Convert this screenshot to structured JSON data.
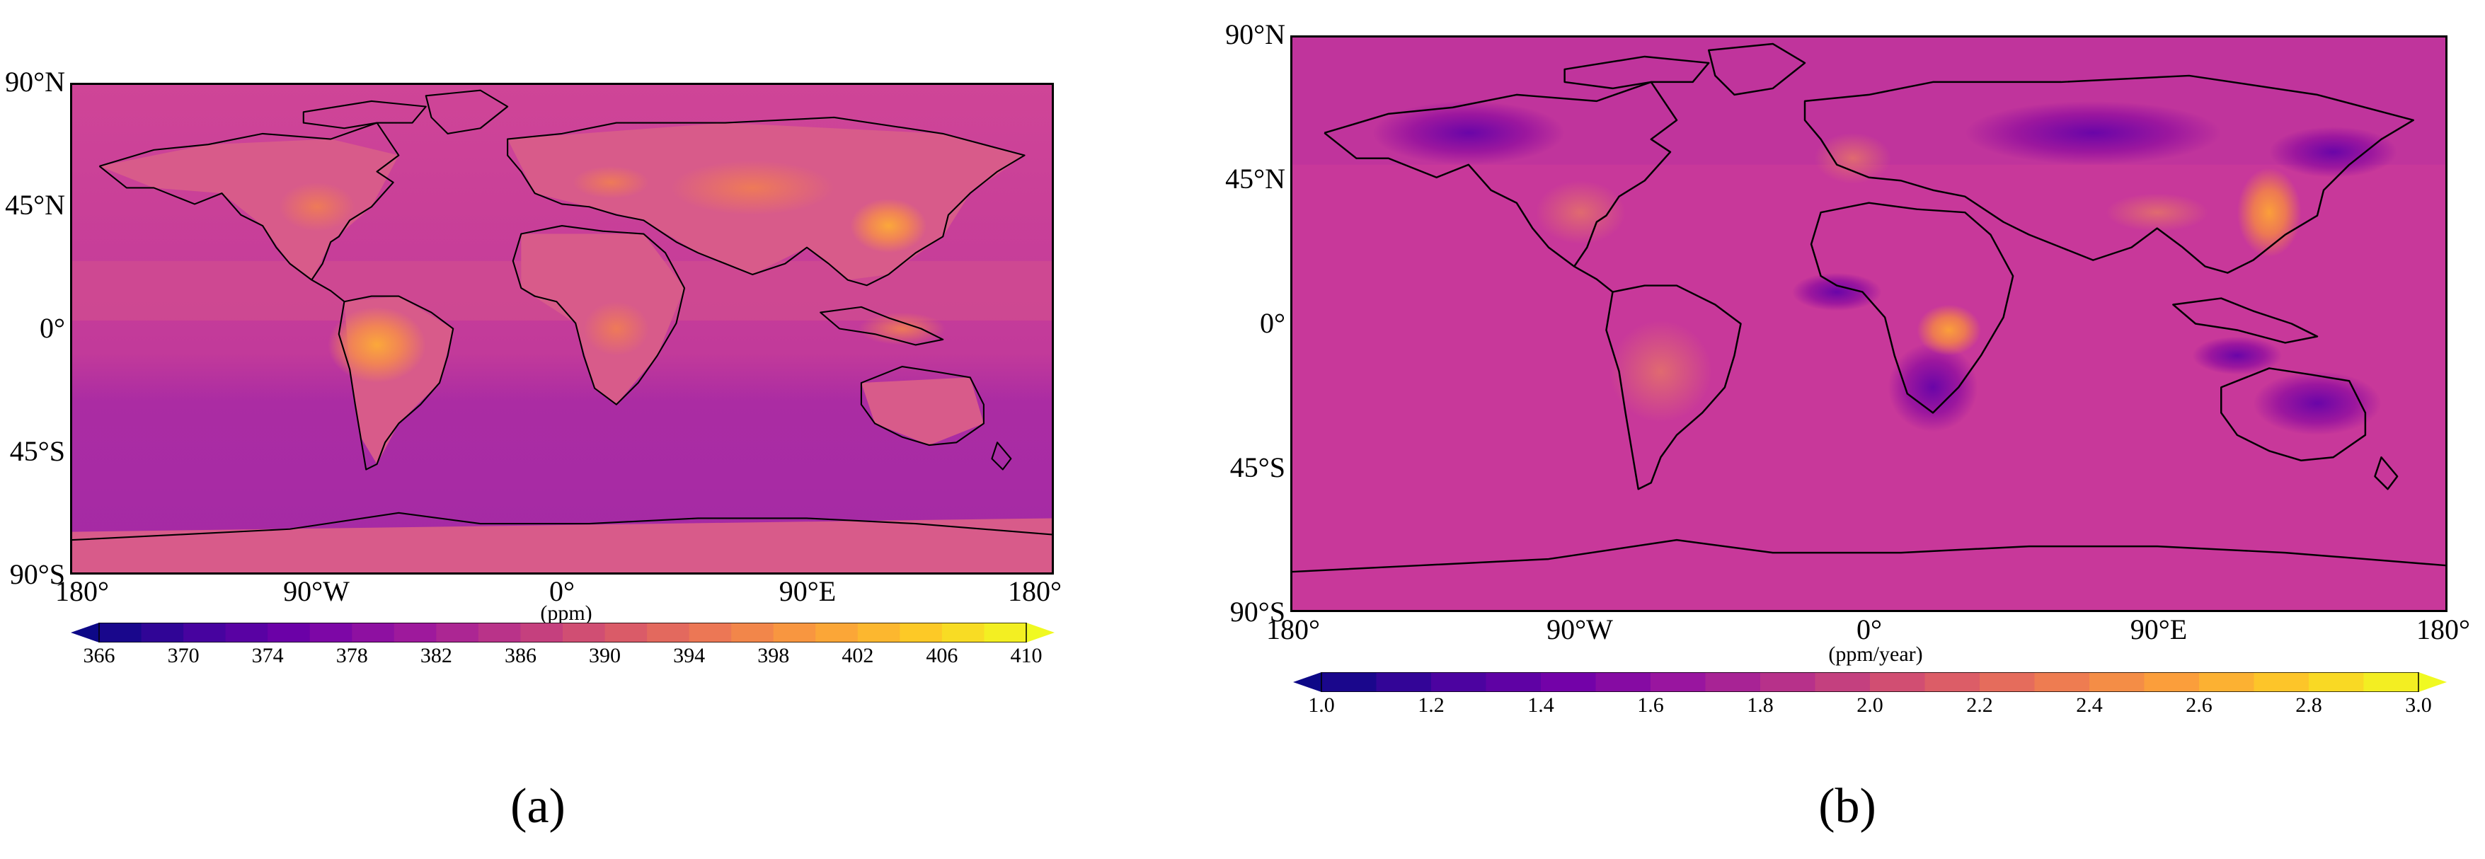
{
  "figure": {
    "panels": [
      {
        "id": "a",
        "label": "(a)",
        "lat_ticks": [
          "90°N",
          "45°N",
          "0°",
          "45°S",
          "90°S"
        ],
        "lon_ticks": [
          "180°",
          "90°W",
          "0°",
          "90°E",
          "180°"
        ],
        "colorbar": {
          "unit": "(ppm)",
          "ticks": [
            "366",
            "370",
            "374",
            "378",
            "382",
            "386",
            "390",
            "394",
            "398",
            "402",
            "406",
            "410"
          ],
          "min": 366,
          "max": 410,
          "extend": "both"
        }
      },
      {
        "id": "b",
        "label": "(b)",
        "lat_ticks": [
          "90°N",
          "45°N",
          "0°",
          "45°S",
          "90°S"
        ],
        "lon_ticks": [
          "180°",
          "90°W",
          "0°",
          "90°E",
          "180°"
        ],
        "colorbar": {
          "unit": "(ppm/year)",
          "ticks": [
            "1.0",
            "1.2",
            "1.4",
            "1.6",
            "1.8",
            "2.0",
            "2.2",
            "2.4",
            "2.6",
            "2.8",
            "3.0"
          ],
          "min": 1.0,
          "max": 3.0,
          "extend": "both"
        }
      }
    ]
  },
  "colors": {
    "plasma": [
      "#0d0887",
      "#46039f",
      "#7201a8",
      "#9c179e",
      "#bd3786",
      "#d8576b",
      "#ed7953",
      "#fb9f3a",
      "#fdca26",
      "#f0f921"
    ],
    "ocean_a": "#c23a9a",
    "ocean_a_south": "#a92aa4",
    "ocean_b": "#c8389a",
    "coastline": "#000000"
  }
}
